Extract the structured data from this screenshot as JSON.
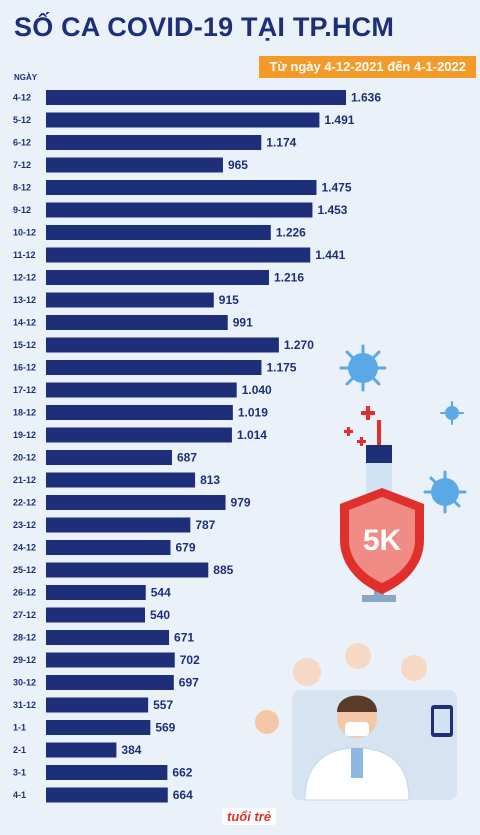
{
  "header": {
    "title": "SỐ CA COVID-19 TẠI TP.HCM",
    "subtitle": "Từ ngày 4-12-2021 đến 4-1-2022"
  },
  "branding": {
    "logo": "Tuổi trẻ"
  },
  "colors": {
    "bar": "#1e2f7a",
    "accent": "#f39a29",
    "background": "#eaf1f8"
  },
  "chart_data": {
    "type": "bar",
    "orientation": "horizontal",
    "ylabel": "NGÀY",
    "categories": [
      "4-12",
      "5-12",
      "6-12",
      "7-12",
      "8-12",
      "9-12",
      "10-12",
      "11-12",
      "12-12",
      "13-12",
      "14-12",
      "15-12",
      "16-12",
      "17-12",
      "18-12",
      "19-12",
      "20-12",
      "21-12",
      "22-12",
      "23-12",
      "24-12",
      "25-12",
      "26-12",
      "27-12",
      "28-12",
      "29-12",
      "30-12",
      "31-12",
      "1-1",
      "2-1",
      "3-1",
      "4-1"
    ],
    "values": [
      1636,
      1491,
      1174,
      965,
      1475,
      1453,
      1226,
      1441,
      1216,
      915,
      991,
      1270,
      1175,
      1040,
      1019,
      1014,
      687,
      813,
      979,
      787,
      679,
      885,
      544,
      540,
      671,
      702,
      697,
      557,
      569,
      384,
      662,
      664
    ],
    "value_labels": [
      "1.636",
      "1.491",
      "1.174",
      "965",
      "1.475",
      "1.453",
      "1.226",
      "1.441",
      "1.216",
      "915",
      "991",
      "1.270",
      "1.175",
      "1.040",
      "1.019",
      "1.014",
      "687",
      "813",
      "979",
      "787",
      "679",
      "885",
      "544",
      "540",
      "671",
      "702",
      "697",
      "557",
      "569",
      "384",
      "662",
      "664"
    ],
    "grid": false
  }
}
